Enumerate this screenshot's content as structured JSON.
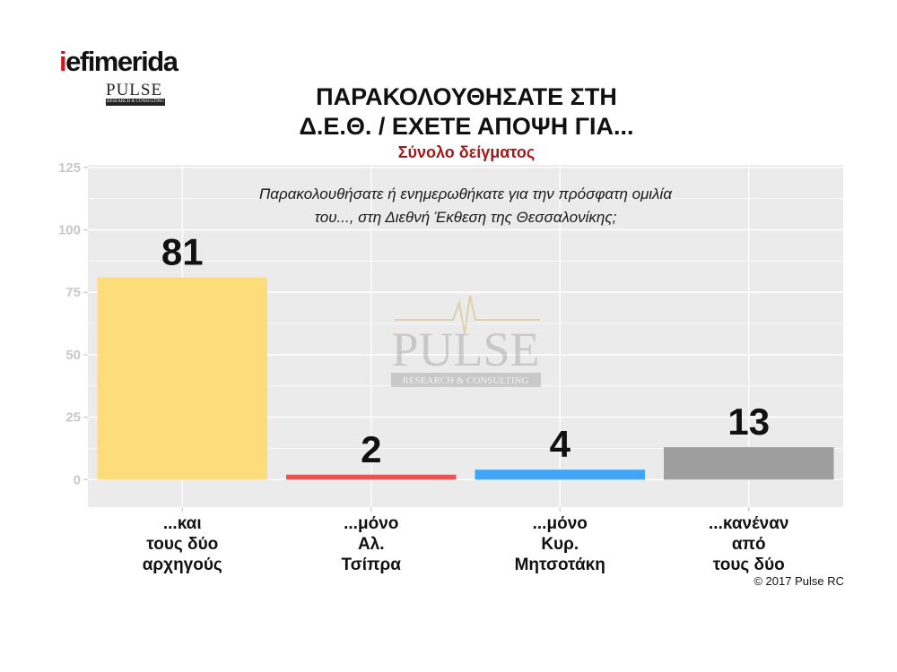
{
  "header": {
    "logo_text_red": "i",
    "logo_text": "efimerida",
    "logo_pulse": "PULSE",
    "logo_rc": "RESEARCH & CONSULTING"
  },
  "watermark": {
    "main": "PULSE",
    "sub": "RESEARCH & CONSULTING"
  },
  "footer": {
    "copyright": "© 2017 Pulse RC"
  },
  "colors": {
    "panel": "#ebebeb",
    "grid": "#ffffff",
    "subtitle": "#a01c1c"
  },
  "chart_data": {
    "type": "bar",
    "title_lines": [
      "ΠΑΡΑΚΟΛΟΥΘΗΣΑΤΕ ΣΤΗ",
      "Δ.Ε.Θ. / ΕΧΕΤΕ ΑΠΟΨΗ ΓΙΑ..."
    ],
    "subtitle": "Σύνολο δείγματος",
    "annotation_lines": [
      "Παρακολουθήσατε ή ενημερωθήκατε για την πρόσφατη ομιλία",
      "του..., στη Διεθνή Έκθεση της Θεσσαλονίκης;"
    ],
    "categories": [
      [
        "...και",
        "τους δύο",
        "αρχηγούς"
      ],
      [
        "...μόνο",
        "Αλ.",
        "Τσίπρα"
      ],
      [
        "...μόνο",
        "Κυρ.",
        "Μητσοτάκη"
      ],
      [
        "...κανέναν",
        "από",
        "τους δύο"
      ]
    ],
    "values": [
      81,
      2,
      4,
      13
    ],
    "value_labels": [
      "81",
      "2",
      "4",
      "13"
    ],
    "bar_colors": [
      "#fddc7c",
      "#e65553",
      "#42a5f5",
      "#9e9e9e"
    ],
    "ylim": [
      -11,
      126
    ],
    "yticks": [
      0,
      25,
      50,
      75,
      100,
      125
    ],
    "ytick_labels": [
      "0",
      "25",
      "50",
      "75",
      "100",
      "125"
    ],
    "grid": true,
    "xlabel": "",
    "ylabel": ""
  }
}
